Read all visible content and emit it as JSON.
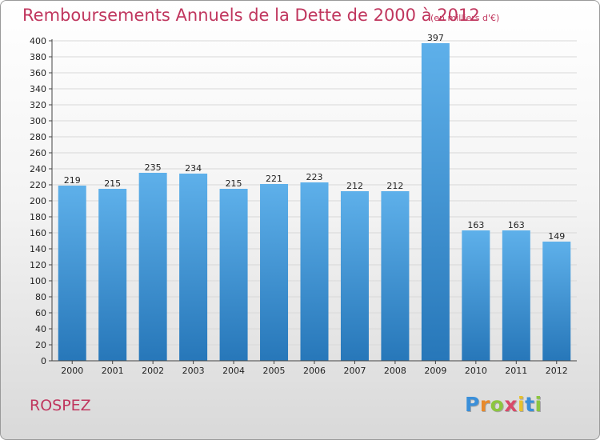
{
  "header": {
    "title": "Remboursements Annuels de la Dette de 2000 à 2012",
    "unit": "(en milliers d'€)"
  },
  "footer": {
    "commune": "ROSPEZ",
    "logo_text": "Proxiti"
  },
  "colors": {
    "title": "#c0365e",
    "bar_top": "#5eb0ea",
    "bar_bottom": "#2777b9",
    "grid": "#d8d8d8",
    "axis_text": "#222222"
  },
  "chart_data": {
    "type": "bar",
    "title": "Remboursements Annuels de la Dette de 2000 à 2012",
    "subtitle": "(en milliers d'€)",
    "categories": [
      "2000",
      "2001",
      "2002",
      "2003",
      "2004",
      "2005",
      "2006",
      "2007",
      "2008",
      "2009",
      "2010",
      "2011",
      "2012"
    ],
    "values": [
      219,
      215,
      235,
      234,
      215,
      221,
      223,
      212,
      212,
      397,
      163,
      163,
      149
    ],
    "ylim": [
      0,
      400
    ],
    "ytick_step": 20,
    "grid": true,
    "xlabel": "",
    "ylabel": ""
  }
}
